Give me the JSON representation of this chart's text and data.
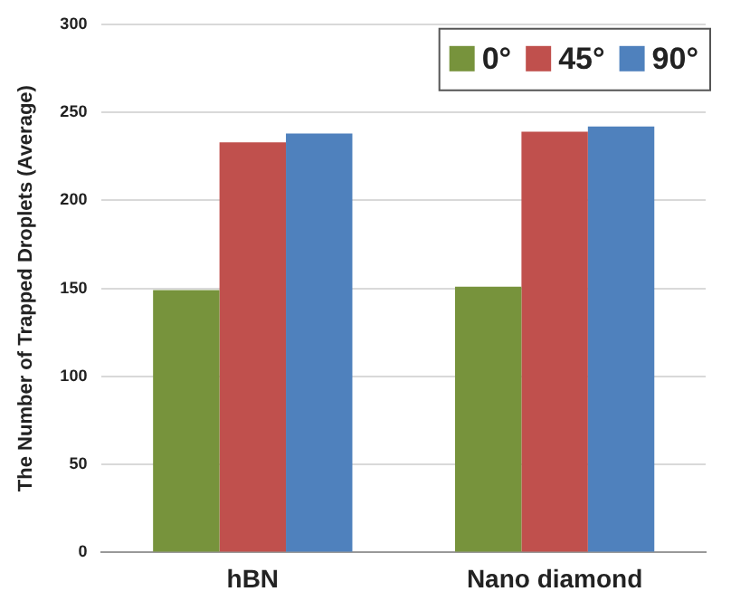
{
  "chart_data": {
    "type": "bar",
    "ylabel": "The Number of Trapped Droplets (Average)",
    "categories": [
      "hBN",
      "Nano diamond"
    ],
    "series": [
      {
        "name": "0°",
        "color": "#77933c",
        "values": [
          149,
          151
        ]
      },
      {
        "name": "45°",
        "color": "#c0504d",
        "values": [
          233,
          239
        ]
      },
      {
        "name": "90°",
        "color": "#4f81bd",
        "values": [
          238,
          242
        ]
      }
    ],
    "ylim": [
      0,
      300
    ],
    "yticks": [
      0,
      50,
      100,
      150,
      200,
      250,
      300
    ],
    "grid": "y",
    "legend": "top right"
  }
}
